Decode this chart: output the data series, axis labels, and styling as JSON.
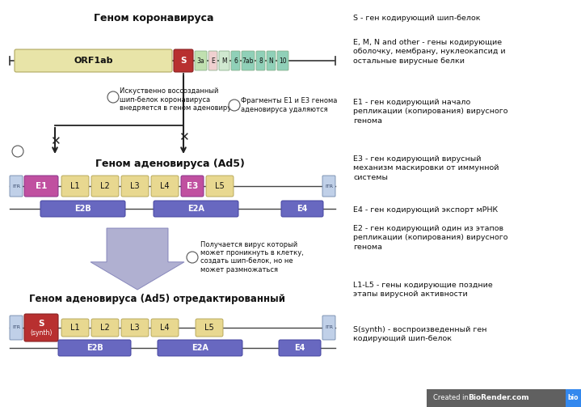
{
  "title_corona": "Геном коронавируса",
  "title_adeno": "Геном аденовируса (Ad5)",
  "title_adeno_edited": "Геном аденовируса (Ad5) отредактированный",
  "legend_s": "S - ген кодирующий шип-белок",
  "legend_emn": "E, M, N and other - гены кодирующие\nоболочку, мембрану, нуклеокапсид и\nостальные вирусные белки",
  "legend_e1": "E1 - ген кодирующий начало\nрепликации (копирования) вирусного\nгенома",
  "legend_e3": "E3 - ген кодирующий вирусный\nмеханизм маскировки от иммунной\nсистемы",
  "legend_e4": "E4 - ген кодирующий экспорт мРНК",
  "legend_e2": "E2 - ген кодирующий один из этапов\nрепликации (копирования) вирусного\nгенома",
  "legend_l": "L1-L5 - гены кодирующие поздние\nэтапы вирусной активности",
  "legend_synth": "S(synth) - воспроизведенный ген\nкодирующий шип-белок",
  "note1": "Фрагменты Е1 и Е3 генома\nаденовируса удаляются",
  "note2": "Искуственно воссозданный\nшип-белок коронавируса\nвнедряется в геном аденовируса",
  "note3": "Получается вирус который\nможет проникнуть в клетку,\nсоздать шип-белок, но не\nможет размножаться",
  "color_orf": "#e8e4a8",
  "color_s_corona": "#b83030",
  "color_s_synth": "#b83030",
  "color_3a": "#c0e0b0",
  "color_E": "#f0d0d0",
  "color_M": "#d0e8d0",
  "color_teal": "#90d0b8",
  "color_e1_e3": "#c050a0",
  "color_l": "#e8d890",
  "color_e2b_e2a_e4": "#6868c0",
  "color_itr": "#c0d0e8",
  "color_arrow_chevron": "#a8a8cc",
  "color_line": "#444444",
  "bg_color": "#ffffff",
  "footer_bg": "#606060",
  "footer_bio_bg": "#3388ee"
}
